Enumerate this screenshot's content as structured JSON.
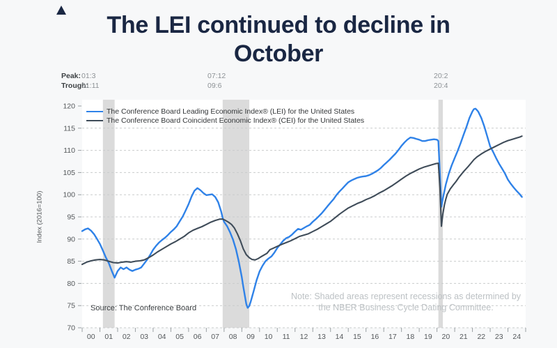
{
  "title": {
    "full": "The LEI continued to decline in October",
    "line1": "The LEI continued to decline in",
    "line2": "October"
  },
  "peak_trough": {
    "peak_label": "Peak:",
    "trough_label": "Trough:",
    "columns": [
      {
        "peak": "01:3",
        "trough": "01:11"
      },
      {
        "peak": "07:12",
        "trough": "09:6"
      },
      {
        "peak": "20:2",
        "trough": "20:4"
      }
    ]
  },
  "source": "Source: The Conference Board",
  "note": {
    "line1": "Note: Shaded areas represent recessions as determined by",
    "line2": "the NBER Business Cycle Dating Committee."
  },
  "colors": {
    "title_navy": "#1a2743",
    "page_bg": "#f7f8f9",
    "lei_blue": "#2f82e8",
    "cei_dark": "#3f4c59",
    "recession_gray": "#dbdbdb",
    "grid_gray": "#c9cbcc"
  },
  "chart_data": {
    "type": "line",
    "title": "The LEI continued to decline in October",
    "xlabel": "",
    "ylabel": "Index (2016=100)",
    "ylim": [
      70,
      120
    ],
    "ytick_step": 5,
    "xlim": [
      2000,
      2025
    ],
    "xtick_labels": [
      "00",
      "01",
      "02",
      "03",
      "04",
      "05",
      "06",
      "07",
      "08",
      "09",
      "10",
      "11",
      "12",
      "13",
      "14",
      "15",
      "16",
      "17",
      "18",
      "19",
      "20",
      "21",
      "22",
      "23",
      "24"
    ],
    "grid": "dashed-horizontal",
    "legend_position": "top-left",
    "plot_bg": "#ffffff",
    "recession_color": "#dbdbdb",
    "grid_color": "#c9cbcc",
    "tick_color": "#9aa0a3",
    "recessions": [
      [
        2001.17,
        2001.83
      ],
      [
        2007.92,
        2009.42
      ],
      [
        2020.08,
        2020.33
      ]
    ],
    "series": [
      {
        "name": "The Conference Board Leading Economic Index® (LEI) for the United States",
        "color": "#2f82e8",
        "points": [
          [
            2000.0,
            91.8
          ],
          [
            2000.17,
            92.2
          ],
          [
            2000.33,
            92.4
          ],
          [
            2000.5,
            91.9
          ],
          [
            2000.67,
            91.1
          ],
          [
            2000.83,
            90.1
          ],
          [
            2001.0,
            88.9
          ],
          [
            2001.17,
            87.4
          ],
          [
            2001.33,
            85.9
          ],
          [
            2001.5,
            84.6
          ],
          [
            2001.67,
            82.8
          ],
          [
            2001.83,
            81.3
          ],
          [
            2002.0,
            82.8
          ],
          [
            2002.17,
            83.6
          ],
          [
            2002.33,
            83.2
          ],
          [
            2002.5,
            83.6
          ],
          [
            2002.67,
            83.1
          ],
          [
            2002.83,
            82.8
          ],
          [
            2003.0,
            83.1
          ],
          [
            2003.17,
            83.3
          ],
          [
            2003.33,
            83.6
          ],
          [
            2003.5,
            84.5
          ],
          [
            2003.67,
            85.4
          ],
          [
            2003.83,
            86.4
          ],
          [
            2004.0,
            87.6
          ],
          [
            2004.17,
            88.5
          ],
          [
            2004.33,
            89.2
          ],
          [
            2004.5,
            89.8
          ],
          [
            2004.67,
            90.3
          ],
          [
            2004.83,
            90.9
          ],
          [
            2005.0,
            91.6
          ],
          [
            2005.17,
            92.2
          ],
          [
            2005.33,
            92.9
          ],
          [
            2005.5,
            94.0
          ],
          [
            2005.67,
            95.1
          ],
          [
            2005.83,
            96.4
          ],
          [
            2006.0,
            97.9
          ],
          [
            2006.17,
            99.6
          ],
          [
            2006.33,
            100.9
          ],
          [
            2006.5,
            101.5
          ],
          [
            2006.67,
            101.0
          ],
          [
            2006.83,
            100.4
          ],
          [
            2007.0,
            99.9
          ],
          [
            2007.17,
            100.0
          ],
          [
            2007.33,
            100.1
          ],
          [
            2007.5,
            99.5
          ],
          [
            2007.67,
            98.3
          ],
          [
            2007.83,
            96.3
          ],
          [
            2007.92,
            94.8
          ],
          [
            2008.0,
            93.9
          ],
          [
            2008.17,
            92.9
          ],
          [
            2008.33,
            91.6
          ],
          [
            2008.5,
            89.9
          ],
          [
            2008.67,
            87.7
          ],
          [
            2008.83,
            84.9
          ],
          [
            2009.0,
            81.4
          ],
          [
            2009.08,
            79.3
          ],
          [
            2009.17,
            77.2
          ],
          [
            2009.25,
            75.4
          ],
          [
            2009.33,
            74.5
          ],
          [
            2009.42,
            74.9
          ],
          [
            2009.5,
            75.9
          ],
          [
            2009.67,
            78.3
          ],
          [
            2009.83,
            80.7
          ],
          [
            2010.0,
            82.7
          ],
          [
            2010.17,
            84.0
          ],
          [
            2010.33,
            85.0
          ],
          [
            2010.5,
            85.6
          ],
          [
            2010.67,
            86.1
          ],
          [
            2010.83,
            86.9
          ],
          [
            2011.0,
            88.0
          ],
          [
            2011.17,
            88.8
          ],
          [
            2011.33,
            89.6
          ],
          [
            2011.5,
            90.2
          ],
          [
            2011.67,
            90.5
          ],
          [
            2011.83,
            91.0
          ],
          [
            2012.0,
            91.7
          ],
          [
            2012.17,
            92.3
          ],
          [
            2012.33,
            92.1
          ],
          [
            2012.5,
            92.5
          ],
          [
            2012.67,
            92.9
          ],
          [
            2012.83,
            93.2
          ],
          [
            2013.0,
            93.9
          ],
          [
            2013.17,
            94.5
          ],
          [
            2013.33,
            95.1
          ],
          [
            2013.5,
            95.8
          ],
          [
            2013.67,
            96.6
          ],
          [
            2013.83,
            97.4
          ],
          [
            2014.0,
            98.2
          ],
          [
            2014.17,
            99.0
          ],
          [
            2014.33,
            99.9
          ],
          [
            2014.5,
            100.7
          ],
          [
            2014.67,
            101.4
          ],
          [
            2014.83,
            102.1
          ],
          [
            2015.0,
            102.8
          ],
          [
            2015.17,
            103.2
          ],
          [
            2015.33,
            103.5
          ],
          [
            2015.5,
            103.8
          ],
          [
            2015.67,
            104.0
          ],
          [
            2015.83,
            104.1
          ],
          [
            2016.0,
            104.2
          ],
          [
            2016.17,
            104.4
          ],
          [
            2016.33,
            104.7
          ],
          [
            2016.5,
            105.1
          ],
          [
            2016.67,
            105.5
          ],
          [
            2016.83,
            106.0
          ],
          [
            2017.0,
            106.7
          ],
          [
            2017.17,
            107.3
          ],
          [
            2017.33,
            107.9
          ],
          [
            2017.5,
            108.6
          ],
          [
            2017.67,
            109.3
          ],
          [
            2017.83,
            110.1
          ],
          [
            2018.0,
            111.0
          ],
          [
            2018.17,
            111.8
          ],
          [
            2018.33,
            112.4
          ],
          [
            2018.5,
            112.9
          ],
          [
            2018.67,
            112.8
          ],
          [
            2018.83,
            112.6
          ],
          [
            2019.0,
            112.4
          ],
          [
            2019.17,
            112.1
          ],
          [
            2019.33,
            112.1
          ],
          [
            2019.5,
            112.3
          ],
          [
            2019.67,
            112.4
          ],
          [
            2019.83,
            112.5
          ],
          [
            2020.0,
            112.4
          ],
          [
            2020.08,
            112.1
          ],
          [
            2020.17,
            104.5
          ],
          [
            2020.25,
            97.3
          ],
          [
            2020.33,
            99.1
          ],
          [
            2020.5,
            102.3
          ],
          [
            2020.67,
            104.8
          ],
          [
            2020.83,
            106.6
          ],
          [
            2021.0,
            108.3
          ],
          [
            2021.17,
            109.9
          ],
          [
            2021.33,
            111.6
          ],
          [
            2021.5,
            113.5
          ],
          [
            2021.67,
            115.4
          ],
          [
            2021.83,
            117.3
          ],
          [
            2022.0,
            118.8
          ],
          [
            2022.08,
            119.3
          ],
          [
            2022.17,
            119.4
          ],
          [
            2022.25,
            119.1
          ],
          [
            2022.33,
            118.7
          ],
          [
            2022.5,
            117.3
          ],
          [
            2022.67,
            115.4
          ],
          [
            2022.83,
            113.2
          ],
          [
            2023.0,
            110.9
          ],
          [
            2023.17,
            109.6
          ],
          [
            2023.33,
            108.3
          ],
          [
            2023.5,
            107.0
          ],
          [
            2023.67,
            105.9
          ],
          [
            2023.83,
            104.8
          ],
          [
            2024.0,
            103.4
          ],
          [
            2024.17,
            102.4
          ],
          [
            2024.33,
            101.6
          ],
          [
            2024.5,
            100.8
          ],
          [
            2024.67,
            100.1
          ],
          [
            2024.79,
            99.5
          ]
        ]
      },
      {
        "name": "The Conference Board Coincident Economic Index® (CEI) for the United States",
        "color": "#3f4c59",
        "points": [
          [
            2000.0,
            84.3
          ],
          [
            2000.25,
            84.8
          ],
          [
            2000.5,
            85.1
          ],
          [
            2000.75,
            85.3
          ],
          [
            2001.0,
            85.4
          ],
          [
            2001.25,
            85.3
          ],
          [
            2001.5,
            85.0
          ],
          [
            2001.75,
            84.7
          ],
          [
            2002.0,
            84.6
          ],
          [
            2002.25,
            84.8
          ],
          [
            2002.5,
            84.9
          ],
          [
            2002.75,
            84.8
          ],
          [
            2003.0,
            85.0
          ],
          [
            2003.25,
            85.1
          ],
          [
            2003.5,
            85.3
          ],
          [
            2003.75,
            85.8
          ],
          [
            2004.0,
            86.4
          ],
          [
            2004.25,
            87.1
          ],
          [
            2004.5,
            87.7
          ],
          [
            2004.75,
            88.3
          ],
          [
            2005.0,
            88.9
          ],
          [
            2005.25,
            89.4
          ],
          [
            2005.5,
            90.0
          ],
          [
            2005.75,
            90.6
          ],
          [
            2006.0,
            91.4
          ],
          [
            2006.25,
            92.0
          ],
          [
            2006.5,
            92.4
          ],
          [
            2006.75,
            92.8
          ],
          [
            2007.0,
            93.3
          ],
          [
            2007.25,
            93.8
          ],
          [
            2007.5,
            94.2
          ],
          [
            2007.75,
            94.5
          ],
          [
            2007.92,
            94.5
          ],
          [
            2008.08,
            94.2
          ],
          [
            2008.25,
            93.8
          ],
          [
            2008.42,
            93.3
          ],
          [
            2008.58,
            92.5
          ],
          [
            2008.75,
            91.2
          ],
          [
            2008.92,
            89.6
          ],
          [
            2009.08,
            87.8
          ],
          [
            2009.25,
            86.5
          ],
          [
            2009.42,
            85.8
          ],
          [
            2009.58,
            85.4
          ],
          [
            2009.75,
            85.3
          ],
          [
            2009.92,
            85.6
          ],
          [
            2010.08,
            86.0
          ],
          [
            2010.25,
            86.4
          ],
          [
            2010.42,
            86.8
          ],
          [
            2010.58,
            87.6
          ],
          [
            2010.75,
            87.9
          ],
          [
            2010.92,
            88.2
          ],
          [
            2011.08,
            88.5
          ],
          [
            2011.25,
            88.8
          ],
          [
            2011.5,
            89.2
          ],
          [
            2011.75,
            89.6
          ],
          [
            2012.0,
            90.1
          ],
          [
            2012.25,
            90.6
          ],
          [
            2012.5,
            90.9
          ],
          [
            2012.75,
            91.2
          ],
          [
            2013.0,
            91.7
          ],
          [
            2013.25,
            92.2
          ],
          [
            2013.5,
            92.8
          ],
          [
            2013.75,
            93.4
          ],
          [
            2014.0,
            94.0
          ],
          [
            2014.25,
            94.8
          ],
          [
            2014.5,
            95.6
          ],
          [
            2014.75,
            96.3
          ],
          [
            2015.0,
            97.0
          ],
          [
            2015.25,
            97.5
          ],
          [
            2015.5,
            98.0
          ],
          [
            2015.75,
            98.4
          ],
          [
            2016.0,
            98.9
          ],
          [
            2016.25,
            99.3
          ],
          [
            2016.5,
            99.8
          ],
          [
            2016.75,
            100.4
          ],
          [
            2017.0,
            100.9
          ],
          [
            2017.25,
            101.5
          ],
          [
            2017.5,
            102.1
          ],
          [
            2017.75,
            102.8
          ],
          [
            2018.0,
            103.5
          ],
          [
            2018.25,
            104.2
          ],
          [
            2018.5,
            104.8
          ],
          [
            2018.75,
            105.3
          ],
          [
            2019.0,
            105.8
          ],
          [
            2019.25,
            106.2
          ],
          [
            2019.5,
            106.5
          ],
          [
            2019.75,
            106.8
          ],
          [
            2019.92,
            107.0
          ],
          [
            2020.08,
            107.1
          ],
          [
            2020.17,
            101.5
          ],
          [
            2020.25,
            92.9
          ],
          [
            2020.33,
            95.6
          ],
          [
            2020.42,
            97.7
          ],
          [
            2020.5,
            99.0
          ],
          [
            2020.58,
            100.1
          ],
          [
            2020.75,
            101.3
          ],
          [
            2020.92,
            102.2
          ],
          [
            2021.08,
            103.0
          ],
          [
            2021.25,
            104.0
          ],
          [
            2021.5,
            105.2
          ],
          [
            2021.75,
            106.3
          ],
          [
            2021.92,
            107.1
          ],
          [
            2022.08,
            107.9
          ],
          [
            2022.25,
            108.5
          ],
          [
            2022.5,
            109.2
          ],
          [
            2022.75,
            109.8
          ],
          [
            2023.0,
            110.3
          ],
          [
            2023.25,
            110.8
          ],
          [
            2023.5,
            111.3
          ],
          [
            2023.75,
            111.8
          ],
          [
            2024.0,
            112.2
          ],
          [
            2024.25,
            112.5
          ],
          [
            2024.5,
            112.8
          ],
          [
            2024.67,
            113.0
          ],
          [
            2024.79,
            113.2
          ]
        ]
      }
    ]
  }
}
